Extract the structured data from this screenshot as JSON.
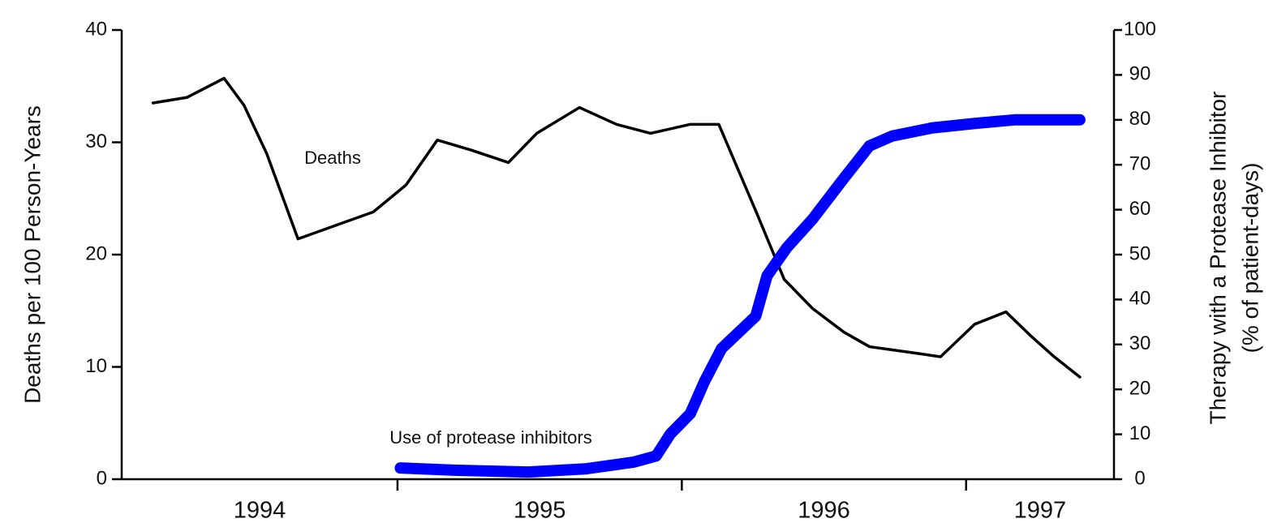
{
  "chart_data": {
    "type": "line",
    "y_axis_label": "Deaths per 100 Person-Years",
    "y2_axis_label": [
      "Therapy with a Protease Inhibitor",
      "(% of patient-days)"
    ],
    "annotations": [
      "Deaths",
      "Use of protease inhibitors"
    ],
    "xlim": [
      1994.03,
      1997.52
    ],
    "xticks": [
      1995,
      1996,
      1997
    ],
    "year_labels": [
      "1994",
      "1995",
      "1996",
      "1997"
    ],
    "ylim": [
      0,
      40
    ],
    "yticks": [
      0,
      10,
      20,
      30,
      40
    ],
    "y2lim": [
      0,
      100
    ],
    "y2ticks": [
      0,
      10,
      20,
      30,
      40,
      50,
      60,
      70,
      80,
      90,
      100
    ],
    "series": [
      {
        "name": "Deaths",
        "color": "#000000",
        "axis": "y",
        "x": [
          1994.14,
          1994.26,
          1994.39,
          1994.46,
          1994.54,
          1994.65,
          1994.915,
          1995.03,
          1995.14,
          1995.26,
          1995.39,
          1995.49,
          1995.64,
          1995.77,
          1995.89,
          1996.03,
          1996.13,
          1996.26,
          1996.36,
          1996.46,
          1996.57,
          1996.66,
          1996.83,
          1996.91,
          1997.03,
          1997.14,
          1997.23,
          1997.31,
          1997.4
        ],
        "values": [
          33.5,
          34.0,
          35.7,
          33.3,
          29,
          21.4,
          23.8,
          26.2,
          30.2,
          29.3,
          28.2,
          30.8,
          33.1,
          31.6,
          30.8,
          31.6,
          31.6,
          23.9,
          17.8,
          15.2,
          13.1,
          11.8,
          11.2,
          10.9,
          13.8,
          14.9,
          12.7,
          10.9,
          9.1
        ]
      },
      {
        "name": "Use of protease inhibitors",
        "color": "#0000ff",
        "axis": "y2",
        "x": [
          1995.01,
          1995.2,
          1995.46,
          1995.66,
          1995.83,
          1995.91,
          1995.96,
          1996.03,
          1996.08,
          1996.14,
          1996.26,
          1996.3,
          1996.37,
          1996.46,
          1996.57,
          1996.66,
          1996.74,
          1996.88,
          1997.03,
          1997.17,
          1997.4
        ],
        "values": [
          2.5,
          2.0,
          1.6,
          2.3,
          3.8,
          5.2,
          10.1,
          14.6,
          21.8,
          29.1,
          36.3,
          45.3,
          51.6,
          57.9,
          67.0,
          74.2,
          76.4,
          78.2,
          79.2,
          80.0,
          80.0
        ]
      }
    ]
  }
}
